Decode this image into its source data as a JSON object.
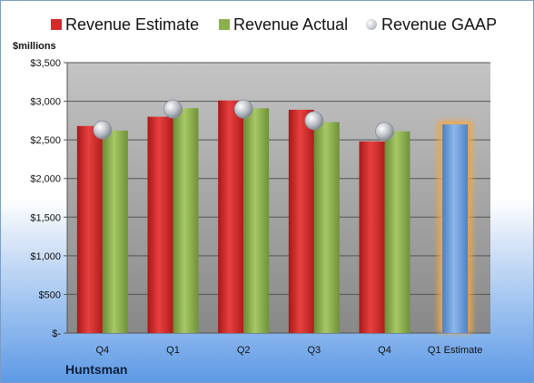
{
  "chart_data": {
    "type": "bar",
    "categories": [
      "Q4",
      "Q1",
      "Q2",
      "Q3",
      "Q4",
      "Q1 Estimate"
    ],
    "series": [
      {
        "name": "Revenue Estimate",
        "values": [
          2680,
          2800,
          3010,
          2890,
          2480,
          2700
        ]
      },
      {
        "name": "Revenue Actual",
        "values": [
          2620,
          2910,
          2910,
          2730,
          2610,
          null
        ]
      },
      {
        "name": "Revenue GAAP",
        "values": [
          2630,
          2900,
          2900,
          2750,
          2610,
          null
        ]
      }
    ],
    "ylabel": "$millions",
    "ylim": [
      0,
      3500
    ],
    "y_ticks": [
      0,
      500,
      1000,
      1500,
      2000,
      2500,
      3000,
      3500
    ],
    "y_tick_labels": [
      "$-",
      "$500",
      "$1,000",
      "$1,500",
      "$2,000",
      "$2,500",
      "$3,000",
      "$3,500"
    ],
    "company": "Huntsman",
    "legend_position": "top",
    "grid": true,
    "colors": {
      "estimate": "#d42a2a",
      "actual": "#8bb04a",
      "gaap": "#c0c4cc",
      "forecast": "#6f9fd8",
      "forecast_glow": "#f5a640"
    }
  }
}
